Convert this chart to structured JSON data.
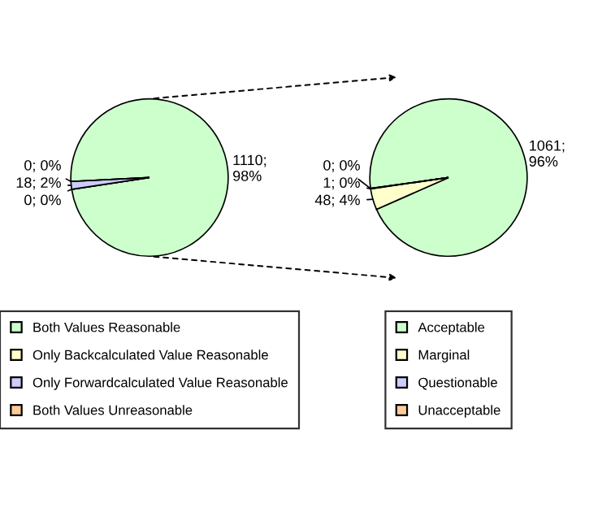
{
  "chart_data": [
    {
      "type": "pie",
      "categories": [
        "Both Values Reasonable",
        "Only Backcalculated Value Reasonable",
        "Only Forwardcalculated Value Reasonable",
        "Both Values Unreasonable"
      ],
      "values": [
        1110,
        0,
        18,
        0
      ],
      "colors": [
        "#ccffcc",
        "#ffffcc",
        "#ccccff",
        "#ffcc99"
      ],
      "value_labels": [
        "1110;\n98%",
        "0; 0%",
        "18; 2%",
        "0; 0%"
      ],
      "legend": "bottom"
    },
    {
      "type": "pie",
      "categories": [
        "Acceptable",
        "Marginal",
        "Questionable",
        "Unacceptable"
      ],
      "values": [
        1061,
        48,
        1,
        0
      ],
      "colors": [
        "#ccffcc",
        "#ffffcc",
        "#ccccff",
        "#ffcc99"
      ],
      "value_labels": [
        "1061;\n96%",
        "48; 4%",
        "1; 0%",
        "0; 0%"
      ],
      "legend": "bottom"
    }
  ]
}
